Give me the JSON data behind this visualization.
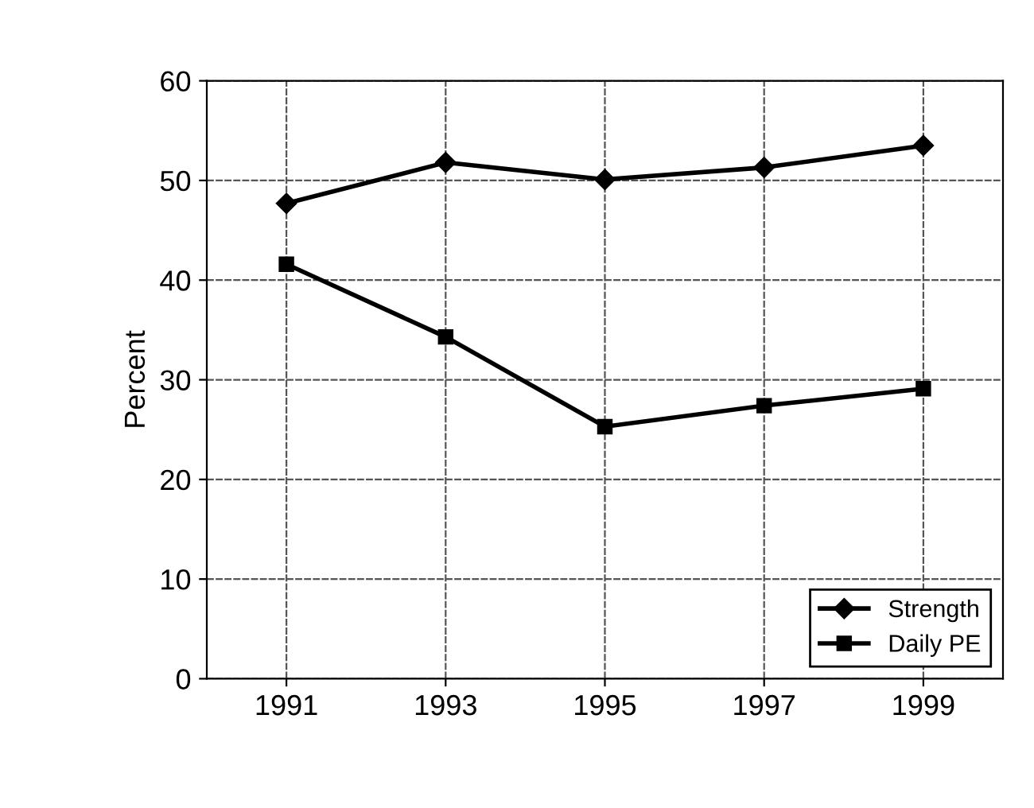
{
  "chart_data": {
    "type": "line",
    "ylabel": "Percent",
    "x": [
      1991,
      1993,
      1995,
      1997,
      1999
    ],
    "series": [
      {
        "name": "Strength",
        "color": "#000000",
        "marker": "diamond",
        "values": [
          47.7,
          51.8,
          50.1,
          51.3,
          53.5
        ]
      },
      {
        "name": "Daily PE",
        "color": "#000000",
        "marker": "square",
        "values": [
          41.6,
          34.3,
          25.3,
          27.4,
          29.1
        ]
      }
    ],
    "xlim": [
      1990,
      2000
    ],
    "xticks": [
      1991,
      1993,
      1995,
      1997,
      1999
    ],
    "ylim": [
      0,
      60
    ],
    "yticks": [
      0,
      10,
      20,
      30,
      40,
      50,
      60
    ],
    "grid": true,
    "legend": "bottom right",
    "line_style": "solid"
  }
}
